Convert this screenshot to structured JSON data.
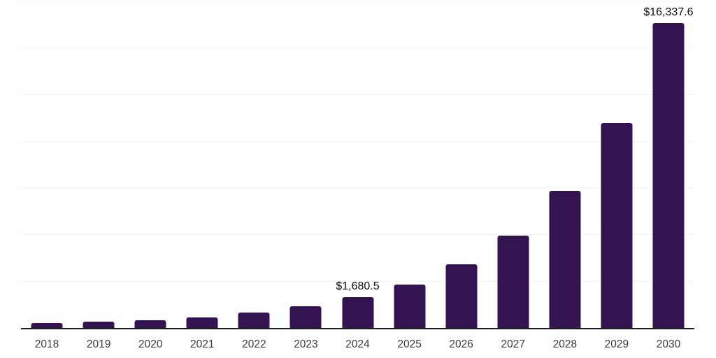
{
  "colors": {
    "background": "#ffffff",
    "bar": "#331450",
    "gridline": "#f2f2f2",
    "axis_line": "#1f1f1f",
    "tick_label_color": "#3a3a3a",
    "data_label_color": "#0d0d0d"
  },
  "chart_data": {
    "type": "bar",
    "title": "",
    "xlabel": "",
    "ylabel": "",
    "categories": [
      "2018",
      "2019",
      "2020",
      "2021",
      "2022",
      "2023",
      "2024",
      "2025",
      "2026",
      "2027",
      "2028",
      "2029",
      "2030"
    ],
    "values": [
      305,
      365,
      465,
      615,
      880,
      1190,
      1680.5,
      2365,
      3430,
      4990,
      7360,
      10990,
      16337.6
    ],
    "data_labels": {
      "2024": "$1,680.5",
      "2030": "$16,337.6"
    },
    "ylim": [
      0,
      17500
    ],
    "gridline_interval": 2500,
    "grid": true,
    "legend": false,
    "y_axis_tick_labels_visible": false
  }
}
